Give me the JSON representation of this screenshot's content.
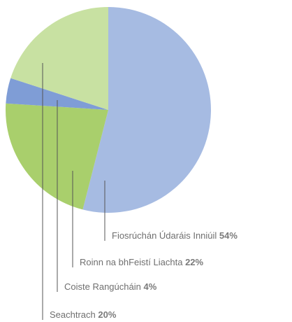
{
  "chart_data": {
    "type": "pie",
    "categories": [
      "Fiosrúchán Údaráis Inniúil",
      "Roinn na bhFeistí Liachta",
      "Coiste Rangúcháin",
      "Seachtrach"
    ],
    "values": [
      54,
      22,
      4,
      20
    ],
    "value_labels": [
      "54%",
      "22%",
      "4%",
      "20%"
    ],
    "colors": [
      "#a6bbe2",
      "#a9cf6c",
      "#7f9dd6",
      "#c8e1a2"
    ]
  }
}
